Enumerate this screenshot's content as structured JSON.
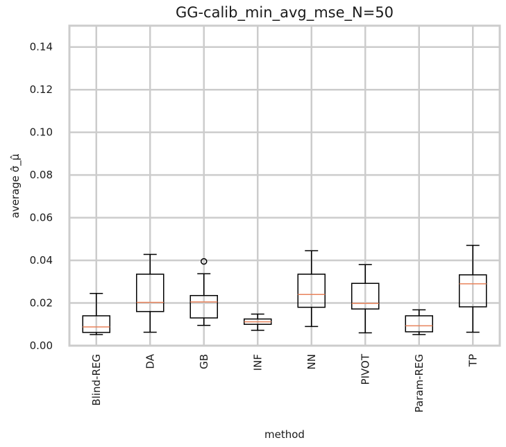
{
  "chart_data": {
    "type": "box",
    "title": "GG-calib_min_avg_mse_N=50",
    "xlabel": "method",
    "ylabel": "average σ̂_μ̂",
    "ylim": [
      0,
      0.15
    ],
    "yticks": [
      0.0,
      0.02,
      0.04,
      0.06,
      0.08,
      0.1,
      0.12,
      0.14
    ],
    "ytick_labels": [
      "0.00",
      "0.02",
      "0.04",
      "0.06",
      "0.08",
      "0.10",
      "0.12",
      "0.14"
    ],
    "grid": true,
    "colors": {
      "box": "#000000",
      "median": "#e8825a",
      "grid": "#cccccc",
      "frame": "#cccccc"
    },
    "categories": [
      "Blind-REG",
      "DA",
      "GB",
      "INF",
      "NN",
      "PIVOT",
      "Param-REG",
      "TP"
    ],
    "boxes": [
      {
        "whislo": 0.0052,
        "q1": 0.0062,
        "med": 0.0088,
        "q3": 0.014,
        "whishi": 0.0245,
        "fliers": []
      },
      {
        "whislo": 0.0063,
        "q1": 0.016,
        "med": 0.0203,
        "q3": 0.0335,
        "whishi": 0.0428,
        "fliers": []
      },
      {
        "whislo": 0.0095,
        "q1": 0.013,
        "med": 0.0205,
        "q3": 0.0235,
        "whishi": 0.0337,
        "fliers": [
          0.0395
        ]
      },
      {
        "whislo": 0.0072,
        "q1": 0.01,
        "med": 0.0112,
        "q3": 0.0125,
        "whishi": 0.0148,
        "fliers": []
      },
      {
        "whislo": 0.009,
        "q1": 0.018,
        "med": 0.024,
        "q3": 0.0335,
        "whishi": 0.0445,
        "fliers": []
      },
      {
        "whislo": 0.006,
        "q1": 0.0172,
        "med": 0.0198,
        "q3": 0.0292,
        "whishi": 0.038,
        "fliers": []
      },
      {
        "whislo": 0.0052,
        "q1": 0.0065,
        "med": 0.0093,
        "q3": 0.014,
        "whishi": 0.0168,
        "fliers": []
      },
      {
        "whislo": 0.0063,
        "q1": 0.0182,
        "med": 0.029,
        "q3": 0.0332,
        "whishi": 0.047,
        "fliers": []
      }
    ]
  }
}
